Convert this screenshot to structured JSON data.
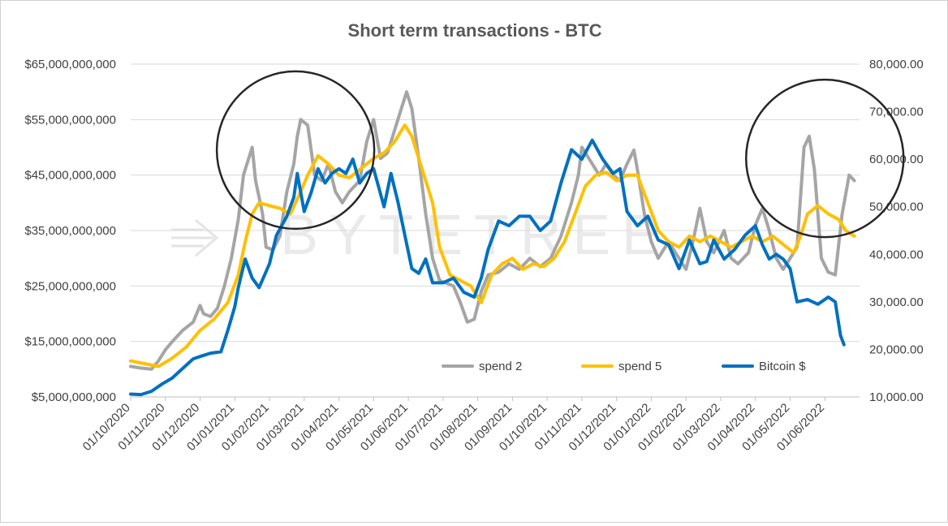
{
  "chart_data": {
    "type": "line",
    "title": "Short term transactions - BTC",
    "watermark": "BYTETREE",
    "x_labels": [
      "01/10/2020",
      "01/11/2020",
      "01/12/2020",
      "01/01/2021",
      "01/02/2021",
      "01/03/2021",
      "01/04/2021",
      "01/05/2021",
      "01/06/2021",
      "01/07/2021",
      "01/08/2021",
      "01/09/2021",
      "01/10/2021",
      "01/11/2021",
      "01/12/2021",
      "01/01/2022",
      "01/02/2022",
      "01/03/2022",
      "01/04/2022",
      "01/05/2022",
      "01/06/2022"
    ],
    "x_range": [
      0,
      21
    ],
    "y_left": {
      "min": 5000000000,
      "max": 65000000000,
      "ticks": [
        5000000000,
        15000000000,
        25000000000,
        35000000000,
        45000000000,
        55000000000,
        65000000000
      ],
      "tick_labels": [
        "$5,000,000,000",
        "$15,000,000,000",
        "$25,000,000,000",
        "$35,000,000,000",
        "$45,000,000,000",
        "$55,000,000,000",
        "$65,000,000,000"
      ]
    },
    "y_right": {
      "min": 10000,
      "max": 80000,
      "ticks": [
        10000,
        20000,
        30000,
        40000,
        50000,
        60000,
        70000,
        80000
      ],
      "tick_labels": [
        "10,000.00",
        "20,000.00",
        "30,000.00",
        "40,000.00",
        "50,000.00",
        "60,000.00",
        "70,000.00",
        "80,000.00"
      ]
    },
    "series": [
      {
        "name": "spend 2",
        "color": "#a5a5a5",
        "axis": "left",
        "points": [
          [
            0,
            10.5
          ],
          [
            0.3,
            10.2
          ],
          [
            0.6,
            10.0
          ],
          [
            0.8,
            11.5
          ],
          [
            1.0,
            13.5
          ],
          [
            1.2,
            15
          ],
          [
            1.5,
            17
          ],
          [
            1.8,
            18.5
          ],
          [
            2.0,
            21.5
          ],
          [
            2.1,
            20
          ],
          [
            2.3,
            19.5
          ],
          [
            2.5,
            21
          ],
          [
            2.7,
            25
          ],
          [
            2.9,
            30
          ],
          [
            3.1,
            37
          ],
          [
            3.25,
            45
          ],
          [
            3.4,
            48
          ],
          [
            3.5,
            50
          ],
          [
            3.6,
            44
          ],
          [
            3.8,
            38
          ],
          [
            3.9,
            32
          ],
          [
            4.1,
            31.5
          ],
          [
            4.3,
            34
          ],
          [
            4.5,
            42
          ],
          [
            4.7,
            47
          ],
          [
            4.8,
            52
          ],
          [
            4.9,
            55
          ],
          [
            5.1,
            54
          ],
          [
            5.3,
            45
          ],
          [
            5.5,
            44
          ],
          [
            5.7,
            47
          ],
          [
            5.9,
            42
          ],
          [
            6.1,
            40
          ],
          [
            6.3,
            42
          ],
          [
            6.6,
            44
          ],
          [
            6.8,
            51
          ],
          [
            7.0,
            55
          ],
          [
            7.2,
            48
          ],
          [
            7.4,
            49
          ],
          [
            7.6,
            53
          ],
          [
            7.8,
            57
          ],
          [
            7.95,
            60
          ],
          [
            8.1,
            57
          ],
          [
            8.3,
            48
          ],
          [
            8.5,
            38
          ],
          [
            8.7,
            30
          ],
          [
            8.9,
            26
          ],
          [
            9.1,
            25.5
          ],
          [
            9.3,
            25
          ],
          [
            9.5,
            22
          ],
          [
            9.7,
            18.5
          ],
          [
            9.9,
            19
          ],
          [
            10.1,
            24
          ],
          [
            10.3,
            27
          ],
          [
            10.6,
            27.5
          ],
          [
            10.9,
            29
          ],
          [
            11.2,
            28
          ],
          [
            11.5,
            30
          ],
          [
            11.8,
            28.5
          ],
          [
            12.1,
            30
          ],
          [
            12.4,
            34
          ],
          [
            12.7,
            40
          ],
          [
            12.9,
            45
          ],
          [
            13.0,
            50
          ],
          [
            13.2,
            48
          ],
          [
            13.5,
            45
          ],
          [
            13.7,
            47
          ],
          [
            13.9,
            45
          ],
          [
            14.1,
            44
          ],
          [
            14.3,
            47
          ],
          [
            14.5,
            49.5
          ],
          [
            14.6,
            46
          ],
          [
            14.8,
            38
          ],
          [
            15.0,
            33
          ],
          [
            15.2,
            30
          ],
          [
            15.5,
            33
          ],
          [
            15.8,
            30
          ],
          [
            16.0,
            28
          ],
          [
            16.2,
            33
          ],
          [
            16.4,
            39
          ],
          [
            16.6,
            33
          ],
          [
            16.8,
            31
          ],
          [
            17.1,
            35
          ],
          [
            17.3,
            30
          ],
          [
            17.5,
            29
          ],
          [
            17.8,
            31
          ],
          [
            18.0,
            36
          ],
          [
            18.2,
            39
          ],
          [
            18.4,
            35
          ],
          [
            18.6,
            30
          ],
          [
            18.8,
            28
          ],
          [
            19.0,
            30
          ],
          [
            19.2,
            32
          ],
          [
            19.4,
            50
          ],
          [
            19.55,
            52
          ],
          [
            19.7,
            46
          ],
          [
            19.9,
            30
          ],
          [
            20.1,
            27.5
          ],
          [
            20.3,
            27
          ],
          [
            20.5,
            38
          ],
          [
            20.7,
            45
          ],
          [
            20.85,
            44
          ]
        ]
      },
      {
        "name": "spend 5",
        "color": "#ffc000",
        "axis": "left",
        "points": [
          [
            0,
            11.5
          ],
          [
            0.4,
            11
          ],
          [
            0.8,
            10.5
          ],
          [
            1.2,
            12
          ],
          [
            1.6,
            14
          ],
          [
            2.0,
            17
          ],
          [
            2.4,
            19
          ],
          [
            2.8,
            22
          ],
          [
            3.1,
            27
          ],
          [
            3.3,
            33
          ],
          [
            3.5,
            38
          ],
          [
            3.7,
            40
          ],
          [
            4.0,
            39.5
          ],
          [
            4.3,
            39
          ],
          [
            4.6,
            38
          ],
          [
            4.9,
            42
          ],
          [
            5.1,
            45
          ],
          [
            5.4,
            48.5
          ],
          [
            5.7,
            47
          ],
          [
            6.0,
            45
          ],
          [
            6.3,
            44.5
          ],
          [
            6.6,
            46
          ],
          [
            7.0,
            48
          ],
          [
            7.3,
            49
          ],
          [
            7.6,
            51
          ],
          [
            7.9,
            54
          ],
          [
            8.1,
            52
          ],
          [
            8.4,
            46
          ],
          [
            8.7,
            40
          ],
          [
            8.9,
            32
          ],
          [
            9.2,
            27
          ],
          [
            9.5,
            26
          ],
          [
            9.8,
            25
          ],
          [
            10.1,
            22
          ],
          [
            10.4,
            27
          ],
          [
            10.7,
            29
          ],
          [
            11.0,
            30
          ],
          [
            11.3,
            28
          ],
          [
            11.6,
            29
          ],
          [
            11.9,
            28.5
          ],
          [
            12.2,
            30
          ],
          [
            12.5,
            33
          ],
          [
            12.8,
            38
          ],
          [
            13.1,
            43
          ],
          [
            13.4,
            45
          ],
          [
            13.7,
            45.5
          ],
          [
            14.0,
            44
          ],
          [
            14.3,
            45
          ],
          [
            14.6,
            45
          ],
          [
            14.9,
            40
          ],
          [
            15.2,
            35
          ],
          [
            15.5,
            33
          ],
          [
            15.8,
            32
          ],
          [
            16.1,
            34
          ],
          [
            16.4,
            33
          ],
          [
            16.7,
            34
          ],
          [
            17.0,
            33
          ],
          [
            17.3,
            32
          ],
          [
            17.6,
            33
          ],
          [
            17.9,
            34
          ],
          [
            18.2,
            33
          ],
          [
            18.5,
            34
          ],
          [
            18.8,
            32.5
          ],
          [
            19.1,
            31
          ],
          [
            19.3,
            34
          ],
          [
            19.5,
            38
          ],
          [
            19.8,
            39.5
          ],
          [
            20.1,
            38
          ],
          [
            20.4,
            37
          ],
          [
            20.6,
            35
          ],
          [
            20.85,
            34
          ]
        ]
      },
      {
        "name": "Bitcoin $",
        "color": "#0070c0",
        "axis": "right",
        "points": [
          [
            0,
            10600
          ],
          [
            0.3,
            10500
          ],
          [
            0.6,
            11200
          ],
          [
            0.9,
            12700
          ],
          [
            1.2,
            14000
          ],
          [
            1.5,
            16000
          ],
          [
            1.8,
            18000
          ],
          [
            2.0,
            18500
          ],
          [
            2.3,
            19200
          ],
          [
            2.6,
            19500
          ],
          [
            2.8,
            24000
          ],
          [
            3.0,
            29000
          ],
          [
            3.1,
            33000
          ],
          [
            3.3,
            39000
          ],
          [
            3.5,
            35000
          ],
          [
            3.7,
            33000
          ],
          [
            4.0,
            38000
          ],
          [
            4.2,
            44000
          ],
          [
            4.5,
            48000
          ],
          [
            4.7,
            52000
          ],
          [
            4.8,
            57000
          ],
          [
            5.0,
            49000
          ],
          [
            5.2,
            53000
          ],
          [
            5.4,
            58000
          ],
          [
            5.6,
            55000
          ],
          [
            5.8,
            57000
          ],
          [
            6.0,
            58000
          ],
          [
            6.2,
            57000
          ],
          [
            6.4,
            60000
          ],
          [
            6.6,
            55000
          ],
          [
            6.8,
            57000
          ],
          [
            7.0,
            58000
          ],
          [
            7.3,
            50000
          ],
          [
            7.5,
            57000
          ],
          [
            7.7,
            51000
          ],
          [
            7.9,
            44000
          ],
          [
            8.1,
            37000
          ],
          [
            8.3,
            36000
          ],
          [
            8.5,
            39000
          ],
          [
            8.7,
            34000
          ],
          [
            9.0,
            34000
          ],
          [
            9.3,
            35000
          ],
          [
            9.6,
            32000
          ],
          [
            9.9,
            31000
          ],
          [
            10.1,
            35000
          ],
          [
            10.3,
            41000
          ],
          [
            10.6,
            47000
          ],
          [
            10.9,
            46000
          ],
          [
            11.2,
            48000
          ],
          [
            11.5,
            48000
          ],
          [
            11.8,
            45000
          ],
          [
            12.1,
            47000
          ],
          [
            12.4,
            55000
          ],
          [
            12.7,
            62000
          ],
          [
            13.0,
            60000
          ],
          [
            13.3,
            64000
          ],
          [
            13.6,
            60000
          ],
          [
            13.9,
            57000
          ],
          [
            14.1,
            58000
          ],
          [
            14.3,
            49000
          ],
          [
            14.6,
            46000
          ],
          [
            14.9,
            48000
          ],
          [
            15.2,
            43000
          ],
          [
            15.5,
            42000
          ],
          [
            15.8,
            37000
          ],
          [
            16.1,
            43000
          ],
          [
            16.4,
            38000
          ],
          [
            16.6,
            38500
          ],
          [
            16.8,
            43000
          ],
          [
            17.1,
            39000
          ],
          [
            17.4,
            41000
          ],
          [
            17.7,
            44000
          ],
          [
            18.0,
            46000
          ],
          [
            18.2,
            42000
          ],
          [
            18.4,
            39000
          ],
          [
            18.6,
            40000
          ],
          [
            18.8,
            39000
          ],
          [
            19.0,
            37000
          ],
          [
            19.2,
            30000
          ],
          [
            19.5,
            30500
          ],
          [
            19.8,
            29500
          ],
          [
            20.1,
            31000
          ],
          [
            20.3,
            30000
          ],
          [
            20.45,
            23000
          ],
          [
            20.55,
            21000
          ]
        ]
      }
    ],
    "legend": [
      {
        "name": "spend 2",
        "color": "#a5a5a5"
      },
      {
        "name": "spend 5",
        "color": "#ffc000"
      },
      {
        "name": "Bitcoin $",
        "color": "#0070c0"
      }
    ],
    "annotations": [
      {
        "type": "circle",
        "center": [
          4.75,
          49.5
        ],
        "label": ""
      },
      {
        "type": "circle",
        "center": [
          20.0,
          48
        ],
        "label": ""
      }
    ]
  }
}
